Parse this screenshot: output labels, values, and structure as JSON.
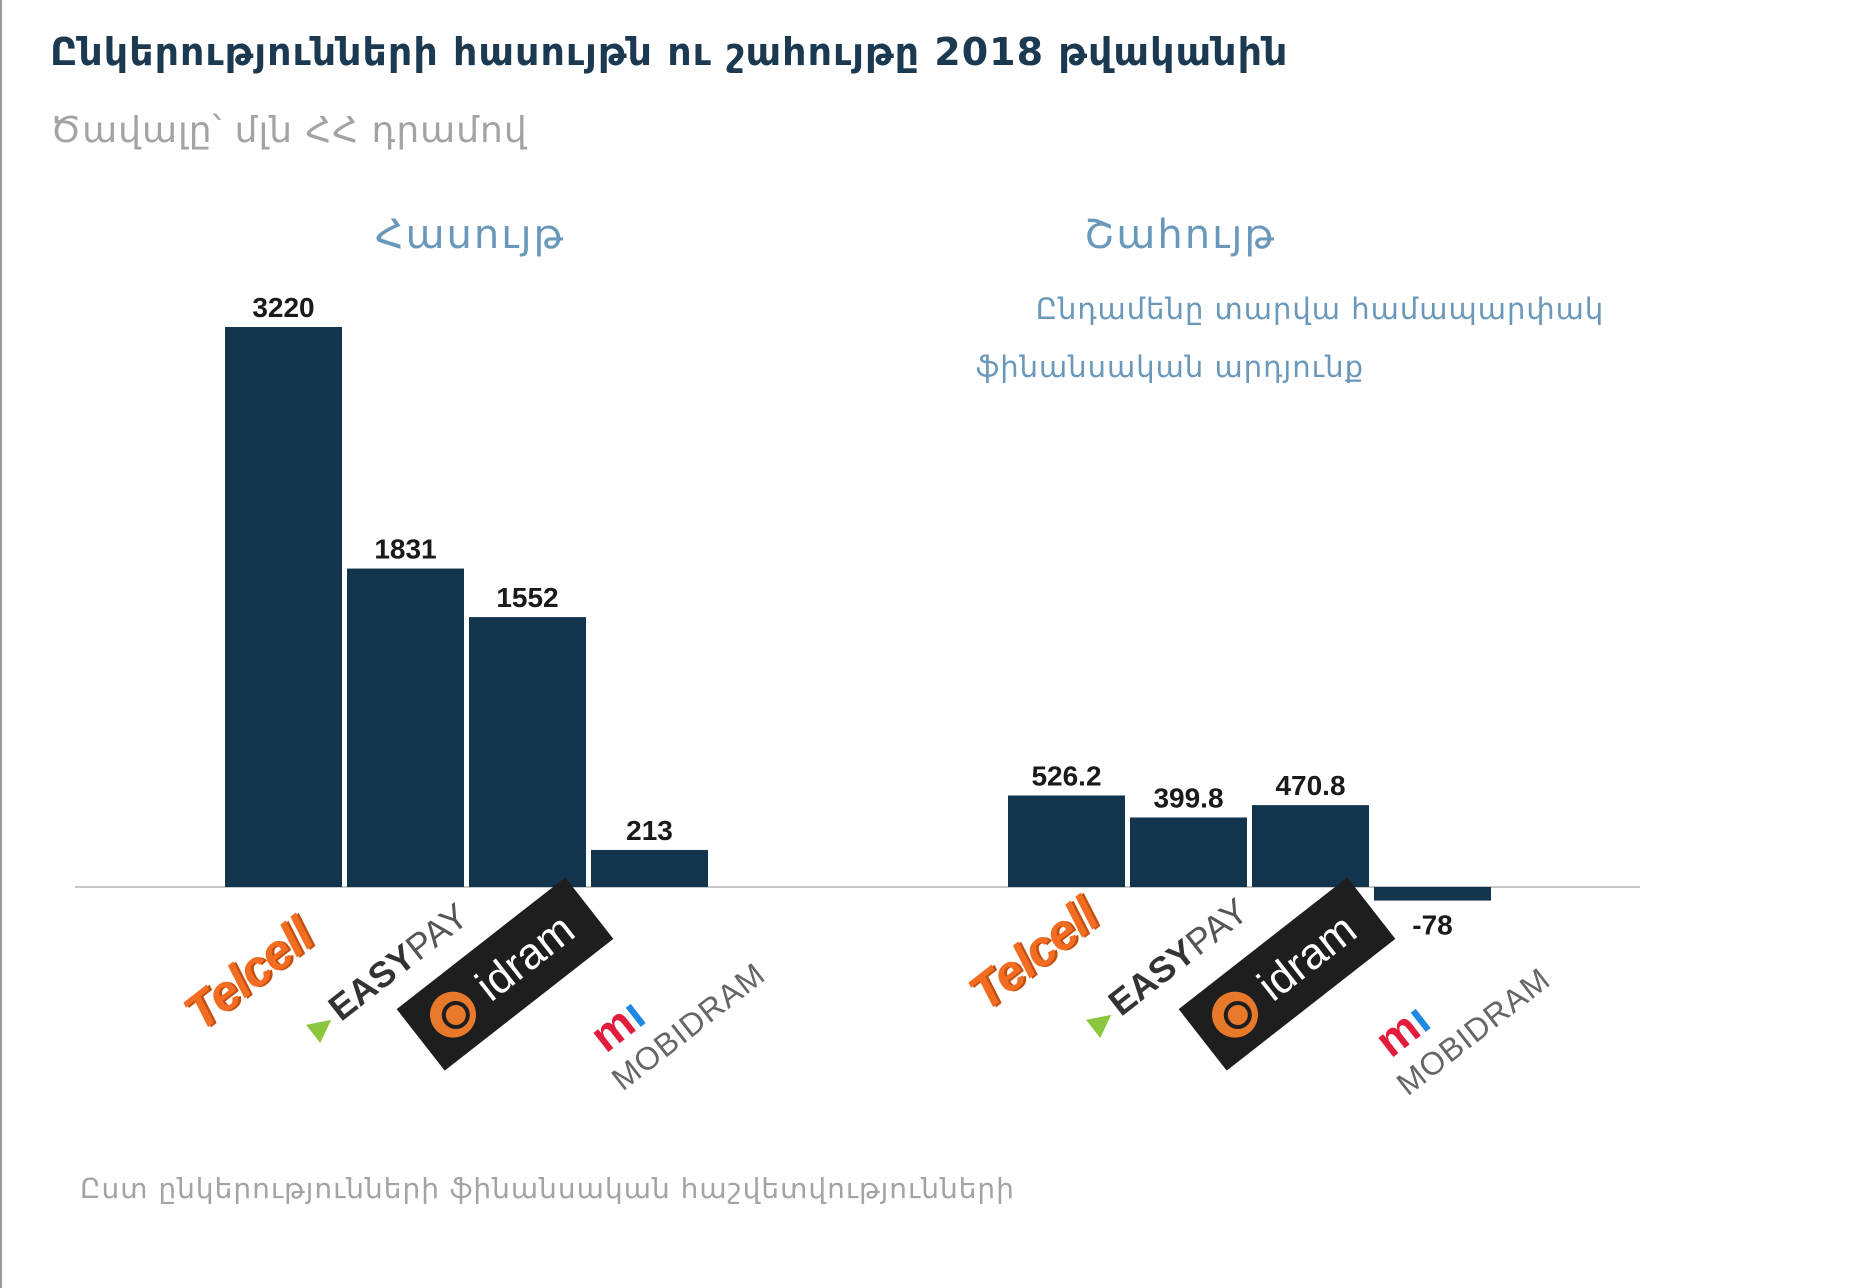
{
  "title": "Ընկերությունների հասույթն ու շահույթը 2018 թվականին",
  "subtitle": "Ծավալը՝ մլն ՀՀ դրամով",
  "footnote": "Ըստ ընկերությունների ֆինանսական հաշվետվությունների",
  "logos": {
    "telcell": "Telcell",
    "easypay_easy": "EASY",
    "easypay_pay": "PAY",
    "idram": "idram",
    "mobidram": "MOBIDRAM"
  },
  "colors": {
    "bar": "#12344d",
    "title": "#1b3a52",
    "panel_title": "#6a98ba",
    "muted": "#a3a3a3",
    "axis": "#c8c8c8"
  },
  "chart_data": [
    {
      "type": "bar",
      "title": "Հասույթ",
      "subtitle": "",
      "categories": [
        "Telcell",
        "EasyPay",
        "Idram",
        "MobiDram"
      ],
      "values": [
        3220,
        1831,
        1552,
        213
      ],
      "value_labels": [
        "3220",
        "1831",
        "1552",
        "213"
      ]
    },
    {
      "type": "bar",
      "title": "Շահույթ",
      "subtitle_lines": [
        "Ընդամենը տարվա համապարփակ",
        "ֆինանսական արդյունք"
      ],
      "categories": [
        "Telcell",
        "EasyPay",
        "Idram",
        "MobiDram"
      ],
      "values": [
        526.2,
        399.8,
        470.8,
        -78
      ],
      "value_labels": [
        "526.2",
        "399.8",
        "470.8",
        "-78"
      ]
    }
  ]
}
